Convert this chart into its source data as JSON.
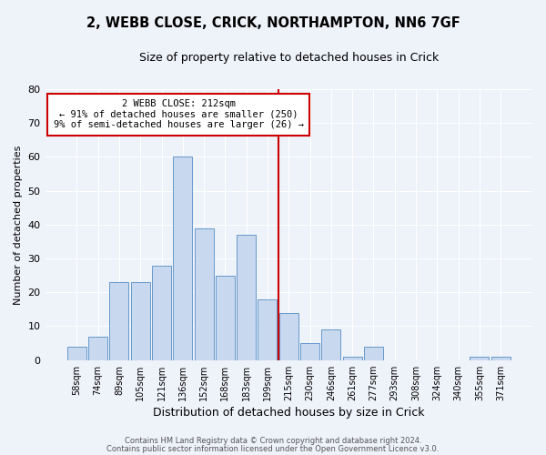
{
  "title_line1": "2, WEBB CLOSE, CRICK, NORTHAMPTON, NN6 7GF",
  "title_line2": "Size of property relative to detached houses in Crick",
  "xlabel": "Distribution of detached houses by size in Crick",
  "ylabel": "Number of detached properties",
  "bar_labels": [
    "58sqm",
    "74sqm",
    "89sqm",
    "105sqm",
    "121sqm",
    "136sqm",
    "152sqm",
    "168sqm",
    "183sqm",
    "199sqm",
    "215sqm",
    "230sqm",
    "246sqm",
    "261sqm",
    "277sqm",
    "293sqm",
    "308sqm",
    "324sqm",
    "340sqm",
    "355sqm",
    "371sqm"
  ],
  "bar_values": [
    4,
    7,
    23,
    23,
    28,
    60,
    39,
    25,
    37,
    18,
    14,
    5,
    9,
    1,
    4,
    0,
    0,
    0,
    0,
    1,
    1
  ],
  "bar_color": "#c8d8ee",
  "bar_edge_color": "#6699cc",
  "vline_x": 9.5,
  "vline_color": "#cc0000",
  "annotation_title": "2 WEBB CLOSE: 212sqm",
  "annotation_line1": "← 91% of detached houses are smaller (250)",
  "annotation_line2": "9% of semi-detached houses are larger (26) →",
  "annotation_box_facecolor": "white",
  "annotation_box_edgecolor": "#cc0000",
  "background_color": "#eef2f9",
  "ylim": [
    0,
    80
  ],
  "yticks": [
    0,
    10,
    20,
    30,
    40,
    50,
    60,
    70,
    80
  ],
  "footer_line1": "Contains HM Land Registry data © Crown copyright and database right 2024.",
  "footer_line2": "Contains public sector information licensed under the Open Government Licence v3.0."
}
